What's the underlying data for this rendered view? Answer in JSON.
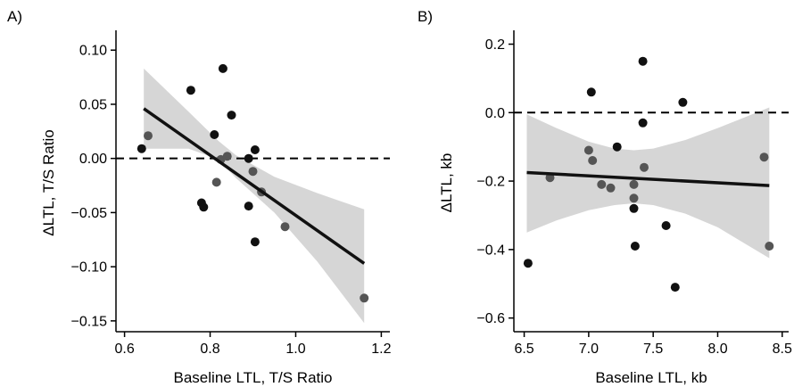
{
  "chart_data": [
    {
      "panel_label": "A)",
      "type": "scatter",
      "xlabel": "Baseline LTL, T/S Ratio",
      "ylabel": "ΔLTL, T/S Ratio",
      "xlim": [
        0.58,
        1.22
      ],
      "ylim": [
        -0.16,
        0.115
      ],
      "xticks": [
        0.6,
        0.8,
        1.0,
        1.2
      ],
      "xtick_labels": [
        "0.6",
        "0.8",
        "1.0",
        "1.2"
      ],
      "yticks": [
        -0.15,
        -0.1,
        -0.05,
        0.0,
        0.05,
        0.1
      ],
      "ytick_labels": [
        "−0.15",
        "−0.10",
        "−0.05",
        "0.00",
        "0.05",
        "0.10"
      ],
      "reference_line_y": 0.0,
      "fit_line": {
        "x": [
          0.645,
          1.16
        ],
        "y": [
          0.046,
          -0.097
        ]
      },
      "confidence_band": {
        "x": [
          0.645,
          0.75,
          0.82,
          0.86,
          0.95,
          1.05,
          1.16
        ],
        "upper": [
          0.083,
          0.043,
          0.016,
          0.003,
          -0.017,
          -0.032,
          -0.047
        ],
        "lower": [
          0.009,
          0.009,
          -0.001,
          -0.018,
          -0.05,
          -0.095,
          -0.152
        ]
      },
      "points": [
        {
          "x": 0.64,
          "y": 0.009,
          "tone": "dark"
        },
        {
          "x": 0.655,
          "y": 0.021,
          "tone": "gray"
        },
        {
          "x": 0.755,
          "y": 0.063,
          "tone": "dark"
        },
        {
          "x": 0.78,
          "y": -0.041,
          "tone": "dark"
        },
        {
          "x": 0.785,
          "y": -0.045,
          "tone": "dark"
        },
        {
          "x": 0.81,
          "y": 0.022,
          "tone": "dark"
        },
        {
          "x": 0.815,
          "y": -0.022,
          "tone": "gray"
        },
        {
          "x": 0.825,
          "y": -0.001,
          "tone": "gray"
        },
        {
          "x": 0.83,
          "y": 0.083,
          "tone": "dark"
        },
        {
          "x": 0.84,
          "y": 0.002,
          "tone": "gray"
        },
        {
          "x": 0.85,
          "y": 0.04,
          "tone": "dark"
        },
        {
          "x": 0.89,
          "y": 0.0,
          "tone": "dark"
        },
        {
          "x": 0.89,
          "y": -0.044,
          "tone": "dark"
        },
        {
          "x": 0.9,
          "y": -0.012,
          "tone": "gray"
        },
        {
          "x": 0.905,
          "y": 0.008,
          "tone": "dark"
        },
        {
          "x": 0.905,
          "y": -0.077,
          "tone": "dark"
        },
        {
          "x": 0.92,
          "y": -0.031,
          "tone": "gray"
        },
        {
          "x": 0.975,
          "y": -0.063,
          "tone": "gray"
        },
        {
          "x": 1.16,
          "y": -0.129,
          "tone": "gray"
        }
      ]
    },
    {
      "panel_label": "B)",
      "type": "scatter",
      "xlabel": "Baseline LTL, kb",
      "ylabel": "ΔLTL, kb",
      "xlim": [
        6.42,
        8.55
      ],
      "ylim": [
        -0.64,
        0.23
      ],
      "xticks": [
        6.5,
        7.0,
        7.5,
        8.0,
        8.5
      ],
      "xtick_labels": [
        "6.5",
        "7.0",
        "7.5",
        "8.0",
        "8.5"
      ],
      "yticks": [
        -0.6,
        -0.4,
        -0.2,
        0.0,
        0.2
      ],
      "ytick_labels": [
        "−0.6",
        "−0.4",
        "−0.2",
        "0.0",
        "0.2"
      ],
      "reference_line_y": 0.0,
      "fit_line": {
        "x": [
          6.52,
          8.4
        ],
        "y": [
          -0.175,
          -0.213
        ]
      },
      "confidence_band": {
        "x": [
          6.52,
          6.75,
          7.0,
          7.2,
          7.35,
          7.5,
          7.75,
          8.0,
          8.2,
          8.4
        ],
        "upper": [
          -0.005,
          -0.045,
          -0.085,
          -0.105,
          -0.11,
          -0.105,
          -0.08,
          -0.045,
          -0.015,
          0.015
        ],
        "lower": [
          -0.35,
          -0.315,
          -0.285,
          -0.27,
          -0.265,
          -0.27,
          -0.295,
          -0.335,
          -0.38,
          -0.425
        ]
      },
      "points": [
        {
          "x": 6.53,
          "y": -0.44,
          "tone": "dark"
        },
        {
          "x": 6.7,
          "y": -0.19,
          "tone": "gray"
        },
        {
          "x": 7.0,
          "y": -0.11,
          "tone": "gray"
        },
        {
          "x": 7.02,
          "y": 0.06,
          "tone": "dark"
        },
        {
          "x": 7.03,
          "y": -0.14,
          "tone": "gray"
        },
        {
          "x": 7.1,
          "y": -0.21,
          "tone": "gray"
        },
        {
          "x": 7.17,
          "y": -0.22,
          "tone": "gray"
        },
        {
          "x": 7.22,
          "y": -0.1,
          "tone": "dark"
        },
        {
          "x": 7.35,
          "y": -0.25,
          "tone": "gray"
        },
        {
          "x": 7.35,
          "y": -0.21,
          "tone": "gray"
        },
        {
          "x": 7.35,
          "y": -0.28,
          "tone": "dark"
        },
        {
          "x": 7.36,
          "y": -0.39,
          "tone": "dark"
        },
        {
          "x": 7.42,
          "y": 0.15,
          "tone": "dark"
        },
        {
          "x": 7.42,
          "y": -0.03,
          "tone": "dark"
        },
        {
          "x": 7.43,
          "y": -0.16,
          "tone": "gray"
        },
        {
          "x": 7.6,
          "y": -0.33,
          "tone": "dark"
        },
        {
          "x": 7.67,
          "y": -0.51,
          "tone": "dark"
        },
        {
          "x": 7.73,
          "y": 0.03,
          "tone": "dark"
        },
        {
          "x": 8.36,
          "y": -0.13,
          "tone": "gray"
        },
        {
          "x": 8.4,
          "y": -0.39,
          "tone": "gray"
        }
      ]
    }
  ],
  "colors": {
    "dark_point": "#111111",
    "gray_point": "#555555",
    "band": "#d6d6d6",
    "fit_line": "#111111",
    "axis": "#000000"
  }
}
